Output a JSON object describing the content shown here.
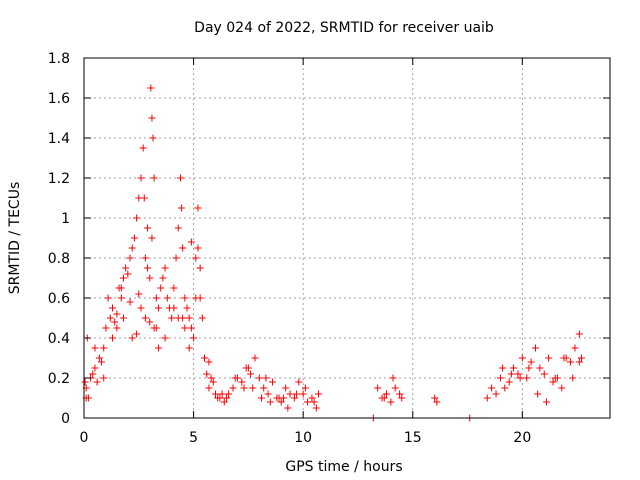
{
  "chart_data": {
    "type": "scatter",
    "title": "Day 024 of 2022, SRMTID for receiver uaib",
    "xlabel": "GPS time / hours",
    "ylabel": "SRMTID / TECUs",
    "xlim": [
      0,
      24
    ],
    "ylim": [
      0,
      1.8
    ],
    "xticks": [
      0,
      5,
      10,
      15,
      20
    ],
    "xtick_labels": [
      "0",
      "5",
      "10",
      "15",
      "20"
    ],
    "yticks": [
      0,
      0.2,
      0.4,
      0.6,
      0.8,
      1,
      1.2,
      1.4,
      1.6,
      1.8
    ],
    "ytick_labels": [
      "0",
      "0.2",
      "0.4",
      "0.6",
      "0.8",
      "1",
      "1.2",
      "1.4",
      "1.6",
      "1.8"
    ],
    "grid": true,
    "marker": "+",
    "marker_color": "#ff0000",
    "series": [
      {
        "name": "SRMTID",
        "x": [
          0.05,
          0.1,
          0.15,
          0.2,
          0.3,
          0.4,
          0.5,
          0.6,
          0.7,
          0.8,
          0.9,
          1.0,
          1.1,
          1.2,
          1.3,
          1.4,
          1.5,
          1.6,
          1.7,
          1.8,
          1.9,
          2.0,
          2.1,
          2.2,
          2.3,
          2.4,
          2.5,
          2.6,
          2.7,
          2.75,
          2.8,
          2.9,
          3.0,
          3.05,
          3.1,
          3.15,
          3.2,
          3.3,
          3.4,
          3.5,
          3.6,
          3.7,
          3.8,
          3.9,
          4.0,
          4.1,
          4.2,
          4.3,
          4.4,
          4.45,
          4.5,
          4.6,
          4.7,
          4.8,
          4.9,
          5.0,
          5.1,
          5.2,
          5.3,
          5.4,
          5.5,
          5.6,
          5.7,
          5.8,
          5.9,
          6.0,
          6.2,
          6.4,
          6.6,
          6.8,
          7.0,
          7.2,
          7.4,
          7.6,
          7.8,
          8.0,
          8.2,
          8.4,
          8.6,
          8.8,
          9.0,
          9.2,
          9.4,
          9.6,
          9.8,
          10.0,
          10.2,
          10.4,
          10.6,
          10.7,
          13.2,
          13.4,
          13.6,
          13.8,
          14.0,
          14.2,
          14.4,
          14.5,
          16.0,
          16.1,
          17.6,
          18.4,
          18.6,
          18.8,
          19.0,
          19.2,
          19.4,
          19.6,
          19.8,
          20.0,
          20.2,
          20.4,
          20.6,
          20.8,
          21.0,
          21.2,
          21.4,
          21.6,
          21.8,
          22.0,
          22.2,
          22.4,
          22.6,
          22.7,
          0.1,
          0.5,
          0.9,
          1.3,
          1.7,
          2.1,
          2.5,
          2.9,
          3.3,
          3.7,
          4.1,
          4.5,
          4.9,
          5.3,
          5.7,
          6.1,
          6.5,
          6.9,
          7.3,
          7.7,
          8.1,
          8.5,
          8.9,
          9.3,
          9.7,
          10.1,
          10.5,
          13.7,
          14.1,
          19.1,
          19.5,
          19.9,
          20.3,
          20.7,
          21.1,
          21.5,
          21.9,
          22.3,
          22.6,
          2.6,
          2.8,
          3.0,
          3.2,
          3.4,
          4.3,
          4.6,
          4.8,
          5.1,
          5.5,
          2.2,
          2.4,
          1.5,
          1.8,
          6.3,
          7.5,
          8.3,
          9.1,
          3.1,
          5.2
        ],
        "y": [
          0.18,
          0.15,
          0.4,
          0.1,
          0.2,
          0.22,
          0.25,
          0.18,
          0.3,
          0.28,
          0.35,
          0.45,
          0.6,
          0.5,
          0.55,
          0.48,
          0.52,
          0.65,
          0.6,
          0.7,
          0.75,
          0.72,
          0.8,
          0.85,
          0.9,
          1.0,
          1.1,
          1.2,
          1.35,
          1.1,
          0.8,
          0.75,
          0.7,
          1.65,
          1.5,
          1.4,
          1.2,
          0.6,
          0.55,
          0.65,
          0.7,
          0.75,
          0.6,
          0.55,
          0.5,
          0.65,
          0.8,
          0.95,
          1.2,
          1.05,
          0.85,
          0.6,
          0.55,
          0.5,
          0.45,
          0.4,
          0.6,
          1.05,
          0.75,
          0.5,
          0.3,
          0.22,
          0.15,
          0.2,
          0.18,
          0.12,
          0.1,
          0.08,
          0.12,
          0.15,
          0.2,
          0.18,
          0.25,
          0.22,
          0.3,
          0.2,
          0.15,
          0.12,
          0.18,
          0.1,
          0.08,
          0.15,
          0.12,
          0.1,
          0.18,
          0.12,
          0.08,
          0.1,
          0.05,
          0.12,
          0.0,
          0.15,
          0.1,
          0.12,
          0.08,
          0.15,
          0.12,
          0.1,
          0.1,
          0.08,
          0.0,
          0.1,
          0.15,
          0.12,
          0.2,
          0.15,
          0.18,
          0.25,
          0.22,
          0.3,
          0.2,
          0.28,
          0.35,
          0.25,
          0.22,
          0.3,
          0.18,
          0.2,
          0.15,
          0.3,
          0.28,
          0.35,
          0.42,
          0.3,
          0.1,
          0.35,
          0.2,
          0.4,
          0.65,
          0.58,
          0.62,
          0.95,
          0.45,
          0.4,
          0.55,
          0.5,
          0.88,
          0.6,
          0.28,
          0.1,
          0.1,
          0.2,
          0.15,
          0.15,
          0.1,
          0.08,
          0.1,
          0.05,
          0.12,
          0.15,
          0.08,
          0.1,
          0.2,
          0.25,
          0.22,
          0.2,
          0.25,
          0.12,
          0.08,
          0.2,
          0.3,
          0.2,
          0.28,
          0.55,
          0.5,
          0.48,
          0.45,
          0.35,
          0.5,
          0.45,
          0.35,
          0.8,
          0.3,
          0.4,
          0.42,
          0.45,
          0.5,
          0.12,
          0.25,
          0.2,
          0.1,
          0.9,
          0.85
        ]
      }
    ]
  }
}
